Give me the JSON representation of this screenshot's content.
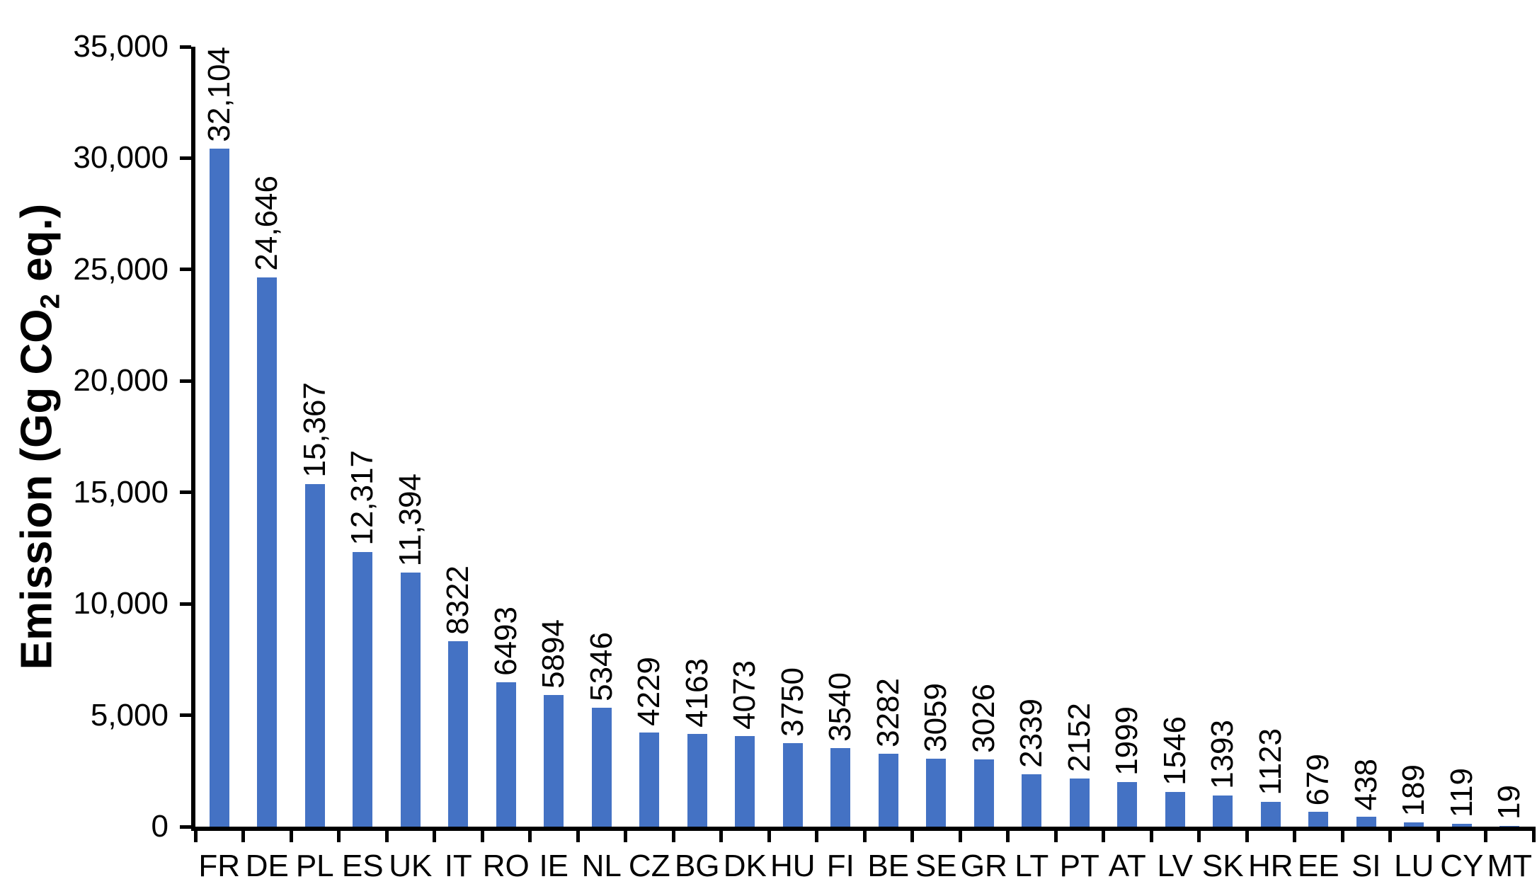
{
  "figure": {
    "y_axis_title": {
      "prefix": "Emission (Gg CO",
      "sub": "2",
      "suffix": " eq.)"
    }
  },
  "chart_data": {
    "type": "bar",
    "title": "",
    "xlabel": "",
    "ylabel": "Emission (Gg CO2 eq.)",
    "categories": [
      "FR",
      "DE",
      "PL",
      "ES",
      "UK",
      "IT",
      "RO",
      "IE",
      "NL",
      "CZ",
      "BG",
      "DK",
      "HU",
      "FI",
      "BE",
      "SE",
      "GR",
      "LT",
      "PT",
      "AT",
      "LV",
      "SK",
      "HR",
      "EE",
      "SI",
      "LU",
      "CY",
      "MT"
    ],
    "values": [
      32104,
      24646,
      15367,
      12317,
      11394,
      8322,
      6493,
      5894,
      5346,
      4229,
      4163,
      4073,
      3750,
      3540,
      3282,
      3059,
      3026,
      2339,
      2152,
      1999,
      1546,
      1393,
      1123,
      679,
      438,
      189,
      119,
      19
    ],
    "value_labels": [
      "32,104",
      "24,646",
      "15,367",
      "12,317",
      "11,394",
      "8322",
      "6493",
      "5894",
      "5346",
      "4229",
      "4163",
      "4073",
      "3750",
      "3540",
      "3282",
      "3059",
      "3026",
      "2339",
      "2152",
      "1999",
      "1546",
      "1393",
      "1123",
      "679",
      "438",
      "189",
      "119",
      "19"
    ],
    "y_ticks": [
      {
        "label": "35,000",
        "value": 35000
      },
      {
        "label": "30,000",
        "value": 30000
      },
      {
        "label": "25,000",
        "value": 25000
      },
      {
        "label": "20,000",
        "value": 20000
      },
      {
        "label": "15,000",
        "value": 15000
      },
      {
        "label": "10,000",
        "value": 10000
      },
      {
        "label": "5,000",
        "value": 5000
      },
      {
        "label": "0",
        "value": 0
      }
    ],
    "ylim": [
      0,
      35000
    ],
    "grid": false,
    "legend": null,
    "bar_color": "#4472C4",
    "axis_color": "#000000",
    "text_color": "#000000",
    "background": "#FFFFFF"
  }
}
